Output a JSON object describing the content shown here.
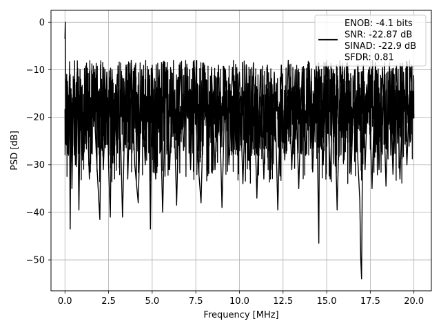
{
  "chart_data": {
    "type": "line",
    "xlabel": "Frequency [MHz]",
    "ylabel": "PSD [dB]",
    "xlim": [
      -0.8,
      21.0
    ],
    "ylim": [
      -56.5,
      2.5
    ],
    "xticks": [
      0.0,
      2.5,
      5.0,
      7.5,
      10.0,
      12.5,
      15.0,
      17.5,
      20.0
    ],
    "xtick_labels": [
      "0.0",
      "2.5",
      "5.0",
      "7.5",
      "10.0",
      "12.5",
      "15.0",
      "17.5",
      "20.0"
    ],
    "yticks": [
      0,
      -10,
      -20,
      -30,
      -40,
      -50
    ],
    "ytick_labels": [
      "0",
      "−10",
      "−20",
      "−30",
      "−40",
      "−50"
    ],
    "grid": true,
    "legend_position": "top-right",
    "series": [
      {
        "name": "ENOB: -4.1 bits\nSNR: -22.87 dB\nSINAD: -22.9 dB\nSFDR: 0.81",
        "color": "#000000",
        "x": [
          0.0,
          0.02,
          0.04,
          0.06,
          0.08,
          0.1,
          0.12,
          0.14,
          0.2,
          0.25,
          0.3,
          0.35,
          0.4,
          0.5,
          0.6,
          0.7,
          0.8,
          0.9,
          1.0,
          1.2,
          1.4,
          1.6,
          1.8,
          2.0,
          2.1,
          2.2,
          2.4,
          2.5,
          2.6,
          2.7,
          2.8,
          3.0,
          3.2,
          3.3,
          3.5,
          3.6,
          3.8,
          4.0,
          4.2,
          4.4,
          4.6,
          4.8,
          4.9,
          5.0,
          5.2,
          5.4,
          5.6,
          5.8,
          6.0,
          6.2,
          6.4,
          6.6,
          6.8,
          7.0,
          7.2,
          7.4,
          7.6,
          7.8,
          8.0,
          8.2,
          8.4,
          8.6,
          8.8,
          9.0,
          9.2,
          9.4,
          9.6,
          9.8,
          10.0,
          10.2,
          10.4,
          10.6,
          10.8,
          11.0,
          11.2,
          11.4,
          11.6,
          11.8,
          12.0,
          12.2,
          12.4,
          12.6,
          12.8,
          13.0,
          13.2,
          13.4,
          13.6,
          13.8,
          14.0,
          14.2,
          14.4,
          14.55,
          14.6,
          14.8,
          15.0,
          15.2,
          15.4,
          15.6,
          15.8,
          16.0,
          16.2,
          16.4,
          16.6,
          16.8,
          16.9,
          16.95,
          17.0,
          17.05,
          17.1,
          17.2,
          17.4,
          17.6,
          17.8,
          18.0,
          18.2,
          18.4,
          18.6,
          18.8,
          19.0,
          19.2,
          19.4,
          19.6,
          19.8,
          20.0
        ],
        "y": [
          -3.5,
          0.0,
          -19.0,
          -12.0,
          -25.0,
          -11.0,
          -22.0,
          -13.0,
          -28.0,
          -11.5,
          -43.5,
          -14.0,
          -35.0,
          -12.0,
          -30.0,
          -10.5,
          -39.5,
          -12.0,
          -29.0,
          -9.5,
          -33.0,
          -11.0,
          -28.0,
          -41.5,
          -12.0,
          -31.0,
          -10.5,
          -30.0,
          -41.0,
          -10.0,
          -28.0,
          -11.0,
          -26.0,
          -41.0,
          -9.0,
          -33.0,
          -8.0,
          -30.0,
          -38.0,
          -10.0,
          -30.0,
          -12.0,
          -43.5,
          -9.0,
          -33.0,
          -10.0,
          -40.0,
          -9.5,
          -31.0,
          -11.0,
          -38.5,
          -8.5,
          -27.0,
          -9.5,
          -31.0,
          -8.0,
          -28.0,
          -38.0,
          -9.0,
          -28.5,
          -10.0,
          -31.0,
          -9.0,
          -39.0,
          -10.0,
          -30.0,
          -9.5,
          -27.0,
          -10.5,
          -34.0,
          -9.0,
          -31.0,
          -8.5,
          -37.0,
          -10.0,
          -33.0,
          -9.0,
          -31.0,
          -10.5,
          -39.5,
          -9.0,
          -29.0,
          -8.0,
          -31.0,
          -10.0,
          -35.0,
          -9.5,
          -28.0,
          -8.5,
          -31.5,
          -9.0,
          -46.5,
          -10.0,
          -30.0,
          -8.0,
          -33.0,
          -10.0,
          -39.5,
          -9.0,
          -29.0,
          -8.5,
          -32.0,
          -10.0,
          -30.0,
          -37.5,
          -49.5,
          -54.0,
          -29.0,
          -9.0,
          -31.0,
          -10.0,
          -35.0,
          -8.5,
          -31.0,
          -9.5,
          -34.5,
          -10.0,
          -32.0,
          -9.0,
          -33.0,
          -10.5,
          -30.0,
          -9.5,
          -20.0
        ]
      }
    ]
  }
}
